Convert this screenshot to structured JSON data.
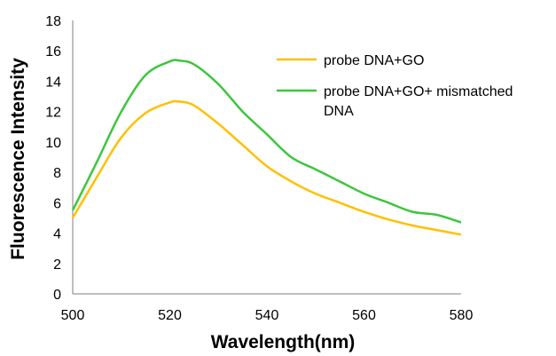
{
  "chart_data": {
    "type": "line",
    "xlabel": "Wavelength(nm)",
    "ylabel": "Fluorescence Intensity",
    "xlim": [
      500,
      580
    ],
    "ylim": [
      0,
      18
    ],
    "xticks": [
      500,
      520,
      540,
      560,
      580
    ],
    "yticks": [
      0,
      2,
      4,
      6,
      8,
      10,
      12,
      14,
      16,
      18
    ],
    "grid": false,
    "legend_position": "top-right",
    "x": [
      500,
      505,
      510,
      515,
      520,
      522,
      525,
      530,
      535,
      540,
      545,
      550,
      555,
      560,
      565,
      570,
      575,
      580
    ],
    "series": [
      {
        "name": "probe DNA+GO",
        "color": "#FFC000",
        "values": [
          5.0,
          7.7,
          10.3,
          11.9,
          12.6,
          12.65,
          12.4,
          11.2,
          9.8,
          8.4,
          7.4,
          6.6,
          6.0,
          5.4,
          4.9,
          4.5,
          4.2,
          3.9
        ]
      },
      {
        "name": "probe DNA+GO+ mismatched DNA",
        "legend_lines": [
          "probe DNA+GO+ mismatched",
          "DNA"
        ],
        "color": "#3DC63D",
        "values": [
          5.5,
          8.7,
          12.0,
          14.4,
          15.3,
          15.35,
          15.1,
          13.8,
          12.0,
          10.5,
          9.0,
          8.2,
          7.4,
          6.6,
          6.0,
          5.4,
          5.2,
          4.7
        ]
      }
    ]
  }
}
